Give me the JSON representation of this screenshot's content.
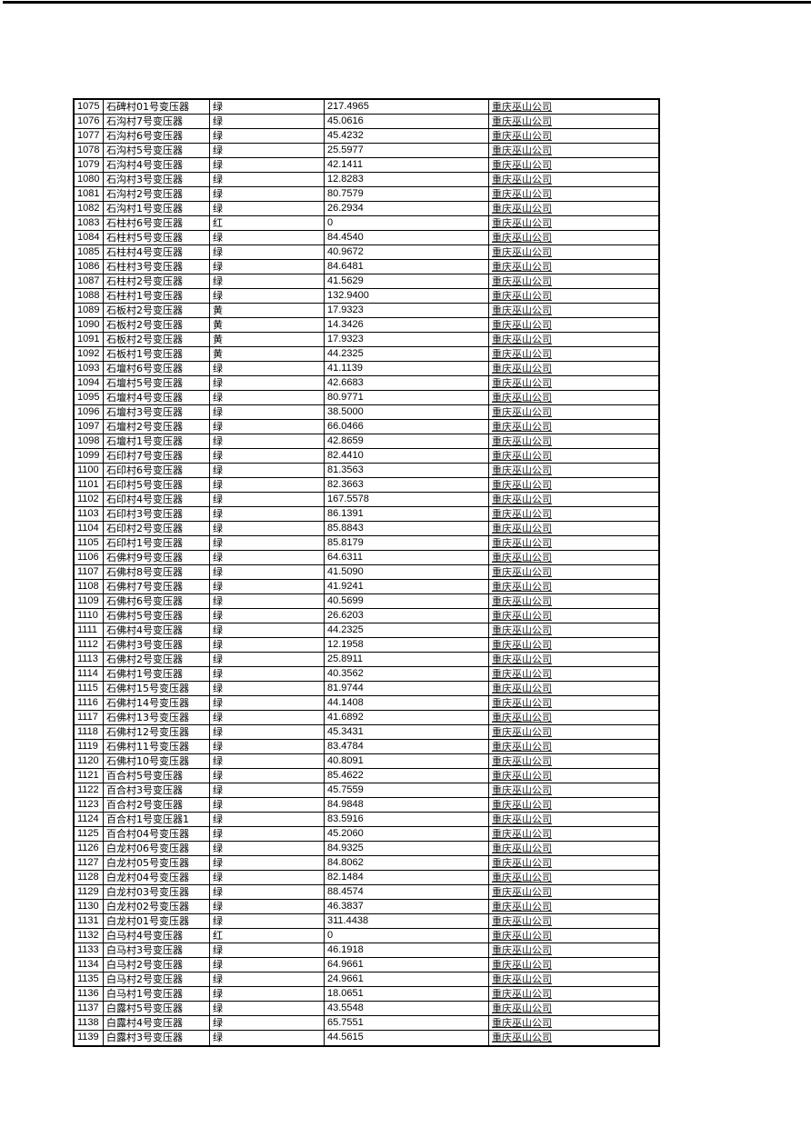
{
  "page": {
    "background": "#ffffff",
    "top_edge_color": "#000000"
  },
  "table": {
    "border_color": "#000000",
    "status_values_seen": [
      "绿",
      "红",
      "黄"
    ],
    "company_label": "重庆巫山公司",
    "rows": [
      [
        "1075",
        "石碑村01号变压器",
        "绿",
        "217.4965",
        "重庆巫山公司"
      ],
      [
        "1076",
        "石沟村7号变压器",
        "绿",
        "45.0616",
        "重庆巫山公司"
      ],
      [
        "1077",
        "石沟村6号变压器",
        "绿",
        "45.4232",
        "重庆巫山公司"
      ],
      [
        "1078",
        "石沟村5号变压器",
        "绿",
        "25.5977",
        "重庆巫山公司"
      ],
      [
        "1079",
        "石沟村4号变压器",
        "绿",
        "42.1411",
        "重庆巫山公司"
      ],
      [
        "1080",
        "石沟村3号变压器",
        "绿",
        "12.8283",
        "重庆巫山公司"
      ],
      [
        "1081",
        "石沟村2号变压器",
        "绿",
        "80.7579",
        "重庆巫山公司"
      ],
      [
        "1082",
        "石沟村1号变压器",
        "绿",
        "26.2934",
        "重庆巫山公司"
      ],
      [
        "1083",
        "石柱村6号变压器",
        "红",
        "0",
        "重庆巫山公司"
      ],
      [
        "1084",
        "石柱村5号变压器",
        "绿",
        "84.4540",
        "重庆巫山公司"
      ],
      [
        "1085",
        "石柱村4号变压器",
        "绿",
        "40.9672",
        "重庆巫山公司"
      ],
      [
        "1086",
        "石柱村3号变压器",
        "绿",
        "84.6481",
        "重庆巫山公司"
      ],
      [
        "1087",
        "石柱村2号变压器",
        "绿",
        "41.5629",
        "重庆巫山公司"
      ],
      [
        "1088",
        "石柱村1号变压器",
        "绿",
        "132.9400",
        "重庆巫山公司"
      ],
      [
        "1089",
        "石板村2号变压器",
        "黄",
        "17.9323",
        "重庆巫山公司"
      ],
      [
        "1090",
        "石板村2号变压器",
        "黄",
        "14.3426",
        "重庆巫山公司"
      ],
      [
        "1091",
        "石板村2号变压器",
        "黄",
        "17.9323",
        "重庆巫山公司"
      ],
      [
        "1092",
        "石板村1号变压器",
        "黄",
        "44.2325",
        "重庆巫山公司"
      ],
      [
        "1093",
        "石壇村6号变压器",
        "绿",
        "41.1139",
        "重庆巫山公司"
      ],
      [
        "1094",
        "石壇村5号变压器",
        "绿",
        "42.6683",
        "重庆巫山公司"
      ],
      [
        "1095",
        "石壇村4号变压器",
        "绿",
        "80.9771",
        "重庆巫山公司"
      ],
      [
        "1096",
        "石壇村3号变压器",
        "绿",
        "38.5000",
        "重庆巫山公司"
      ],
      [
        "1097",
        "石壇村2号变压器",
        "绿",
        "66.0466",
        "重庆巫山公司"
      ],
      [
        "1098",
        "石壇村1号变压器",
        "绿",
        "42.8659",
        "重庆巫山公司"
      ],
      [
        "1099",
        "石印村7号变压器",
        "绿",
        "82.4410",
        "重庆巫山公司"
      ],
      [
        "1100",
        "石印村6号变压器",
        "绿",
        "81.3563",
        "重庆巫山公司"
      ],
      [
        "1101",
        "石印村5号变压器",
        "绿",
        "82.3663",
        "重庆巫山公司"
      ],
      [
        "1102",
        "石印村4号变压器",
        "绿",
        "167.5578",
        "重庆巫山公司"
      ],
      [
        "1103",
        "石印村3号变压器",
        "绿",
        "86.1391",
        "重庆巫山公司"
      ],
      [
        "1104",
        "石印村2号变压器",
        "绿",
        "85.8843",
        "重庆巫山公司"
      ],
      [
        "1105",
        "石印村1号变压器",
        "绿",
        "85.8179",
        "重庆巫山公司"
      ],
      [
        "1106",
        "石佛村9号变压器",
        "绿",
        "64.6311",
        "重庆巫山公司"
      ],
      [
        "1107",
        "石佛村8号变压器",
        "绿",
        "41.5090",
        "重庆巫山公司"
      ],
      [
        "1108",
        "石佛村7号变压器",
        "绿",
        "41.9241",
        "重庆巫山公司"
      ],
      [
        "1109",
        "石佛村6号变压器",
        "绿",
        "40.5699",
        "重庆巫山公司"
      ],
      [
        "1110",
        "石佛村5号变压器",
        "绿",
        "26.6203",
        "重庆巫山公司"
      ],
      [
        "1111",
        "石佛村4号变压器",
        "绿",
        "44.2325",
        "重庆巫山公司"
      ],
      [
        "1112",
        "石佛村3号变压器",
        "绿",
        "12.1958",
        "重庆巫山公司"
      ],
      [
        "1113",
        "石佛村2号变压器",
        "绿",
        "25.8911",
        "重庆巫山公司"
      ],
      [
        "1114",
        "石佛村1号变压器",
        "绿",
        "40.3562",
        "重庆巫山公司"
      ],
      [
        "1115",
        "石佛村15号变压器",
        "绿",
        "81.9744",
        "重庆巫山公司"
      ],
      [
        "1116",
        "石佛村14号变压器",
        "绿",
        "44.1408",
        "重庆巫山公司"
      ],
      [
        "1117",
        "石佛村13号变压器",
        "绿",
        "41.6892",
        "重庆巫山公司"
      ],
      [
        "1118",
        "石佛村12号变压器",
        "绿",
        "45.3431",
        "重庆巫山公司"
      ],
      [
        "1119",
        "石佛村11号变压器",
        "绿",
        "83.4784",
        "重庆巫山公司"
      ],
      [
        "1120",
        "石佛村10号变压器",
        "绿",
        "40.8091",
        "重庆巫山公司"
      ],
      [
        "1121",
        "百合村5号变压器",
        "绿",
        "85.4622",
        "重庆巫山公司"
      ],
      [
        "1122",
        "百合村3号变压器",
        "绿",
        "45.7559",
        "重庆巫山公司"
      ],
      [
        "1123",
        "百合村2号变压器",
        "绿",
        "84.9848",
        "重庆巫山公司"
      ],
      [
        "1124",
        "百合村1号变压器1",
        "绿",
        "83.5916",
        "重庆巫山公司"
      ],
      [
        "1125",
        "百合村04号变压器",
        "绿",
        "45.2060",
        "重庆巫山公司"
      ],
      [
        "1126",
        "白龙村06号变压器",
        "绿",
        "84.9325",
        "重庆巫山公司"
      ],
      [
        "1127",
        "白龙村05号变压器",
        "绿",
        "84.8062",
        "重庆巫山公司"
      ],
      [
        "1128",
        "白龙村04号变压器",
        "绿",
        "82.1484",
        "重庆巫山公司"
      ],
      [
        "1129",
        "白龙村03号变压器",
        "绿",
        "88.4574",
        "重庆巫山公司"
      ],
      [
        "1130",
        "白龙村02号变压器",
        "绿",
        "46.3837",
        "重庆巫山公司"
      ],
      [
        "1131",
        "白龙村01号变压器",
        "绿",
        "311.4438",
        "重庆巫山公司"
      ],
      [
        "1132",
        "白马村4号变压器",
        "红",
        "0",
        "重庆巫山公司"
      ],
      [
        "1133",
        "白马村3号变压器",
        "绿",
        "46.1918",
        "重庆巫山公司"
      ],
      [
        "1134",
        "白马村2号变压器",
        "绿",
        "64.9661",
        "重庆巫山公司"
      ],
      [
        "1135",
        "白马村2号变压器",
        "绿",
        "24.9661",
        "重庆巫山公司"
      ],
      [
        "1136",
        "白马村1号变压器",
        "绿",
        "18.0651",
        "重庆巫山公司"
      ],
      [
        "1137",
        "白露村5号变压器",
        "绿",
        "43.5548",
        "重庆巫山公司"
      ],
      [
        "1138",
        "白露村4号变压器",
        "绿",
        "65.7551",
        "重庆巫山公司"
      ],
      [
        "1139",
        "白露村3号变压器",
        "绿",
        "44.5615",
        "重庆巫山公司"
      ]
    ]
  }
}
